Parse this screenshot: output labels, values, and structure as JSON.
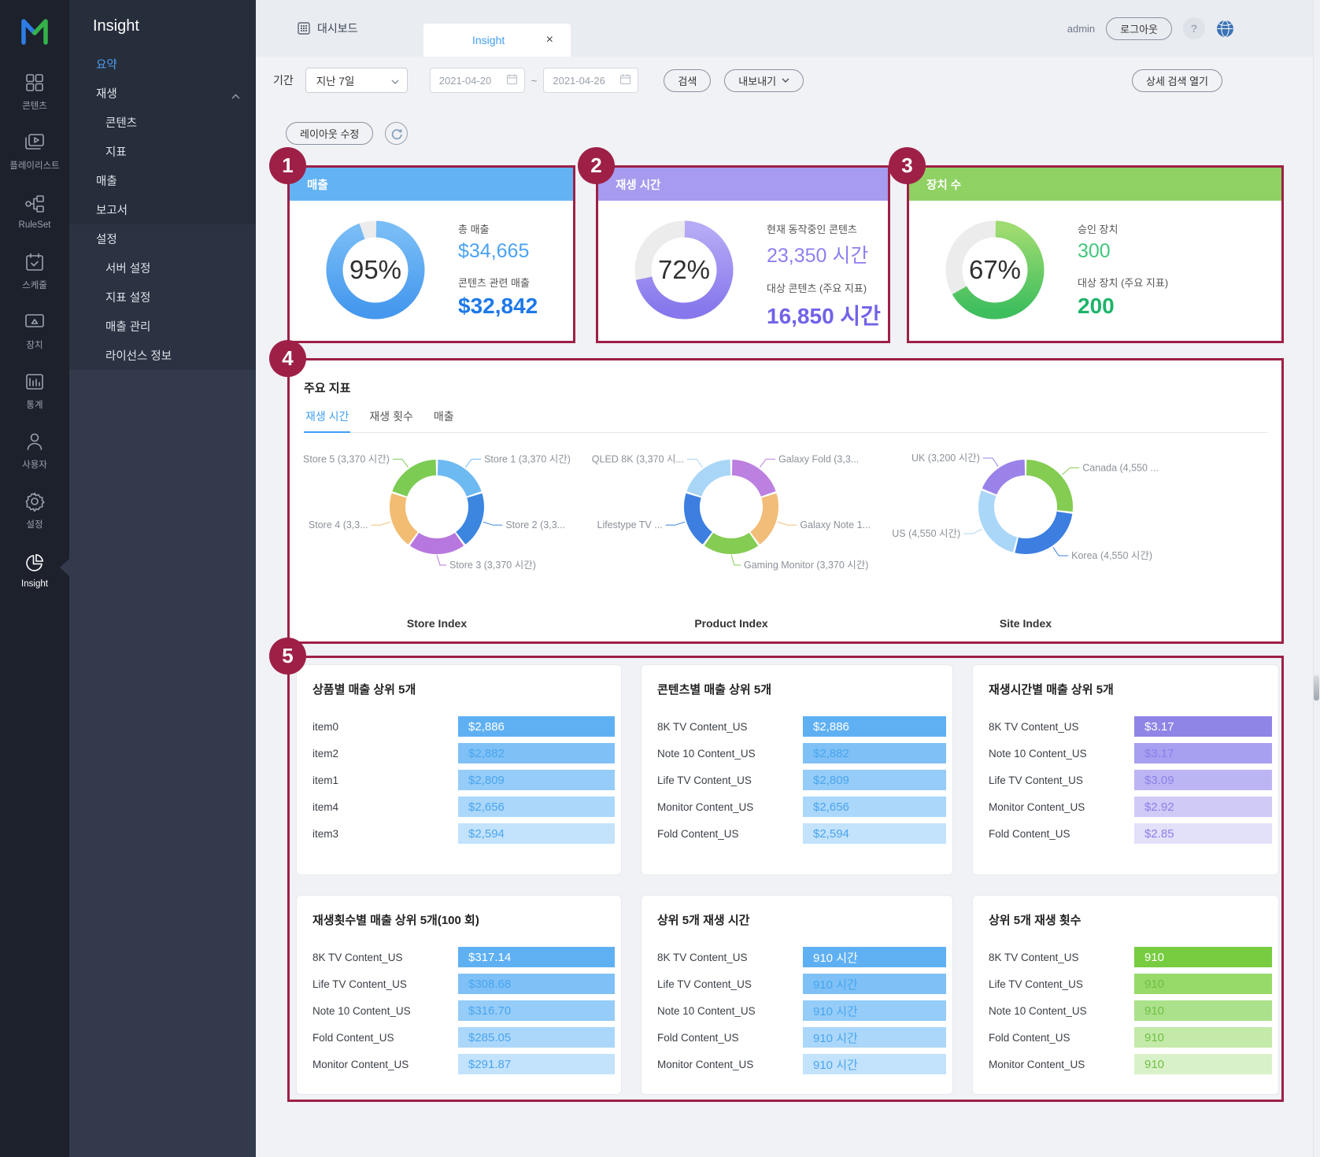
{
  "rail": {
    "items": [
      {
        "id": "contents",
        "label": "콘텐츠",
        "icon": "grid-icon",
        "active": false
      },
      {
        "id": "playlist",
        "label": "플레이리스트",
        "icon": "playlist-icon",
        "active": false
      },
      {
        "id": "ruleset",
        "label": "RuleSet",
        "icon": "ruleset-icon",
        "active": false
      },
      {
        "id": "schedule",
        "label": "스케줄",
        "icon": "calendar-icon",
        "active": false
      },
      {
        "id": "device",
        "label": "장치",
        "icon": "display-icon",
        "active": false
      },
      {
        "id": "stats",
        "label": "통계",
        "icon": "barchart-icon",
        "active": false
      },
      {
        "id": "users",
        "label": "사용자",
        "icon": "user-icon",
        "active": false
      },
      {
        "id": "settings",
        "label": "설정",
        "icon": "gear-icon",
        "active": false
      },
      {
        "id": "insight",
        "label": "Insight",
        "icon": "pie-icon",
        "active": true
      }
    ]
  },
  "side_menu": {
    "title": "Insight",
    "items": [
      {
        "label": "요약",
        "indent": 0,
        "active": true,
        "group": 1
      },
      {
        "label": "재생",
        "indent": 0,
        "active": false,
        "group": 1,
        "expandable": true
      },
      {
        "label": "콘텐츠",
        "indent": 1,
        "active": false,
        "group": 1
      },
      {
        "label": "지표",
        "indent": 1,
        "active": false,
        "group": 1
      },
      {
        "label": "매출",
        "indent": 0,
        "active": false,
        "group": 1
      },
      {
        "label": "보고서",
        "indent": 0,
        "active": false,
        "group": 1
      },
      {
        "label": "설정",
        "indent": 0,
        "active": false,
        "group": 2
      },
      {
        "label": "서버 설정",
        "indent": 1,
        "active": false,
        "group": 2
      },
      {
        "label": "지표 설정",
        "indent": 1,
        "active": false,
        "group": 2
      },
      {
        "label": "매출 관리",
        "indent": 1,
        "active": false,
        "group": 2
      },
      {
        "label": "라이선스 정보",
        "indent": 1,
        "active": false,
        "group": 2
      }
    ]
  },
  "topbar": {
    "dashboard_tab": "대시보드",
    "insight_tab": "Insight",
    "close": "×",
    "username": "admin",
    "logout": "로그아웃",
    "help": "?"
  },
  "filters": {
    "period_label": "기간",
    "period_value": "지난 7일",
    "date_from": "2021-04-20",
    "date_separator": "~",
    "date_to": "2021-04-26",
    "search": "검색",
    "export": "내보내기",
    "advanced_search": "상세 검색 열기"
  },
  "toolbar": {
    "edit_layout": "레이아웃 수정"
  },
  "kpi_cards": [
    {
      "number": "1",
      "title": "매출",
      "header_color": "#63b3f4",
      "gauge_from": "#79bdf6",
      "gauge_to": "#4598ee",
      "percent": 95,
      "percent_label": "95%",
      "stats": [
        {
          "label": "총 매출",
          "value": "$34,665",
          "color": "#4ba2f2",
          "bold": false
        },
        {
          "label": "콘텐츠 관련 매출",
          "value": "$32,842",
          "color": "#1d78e8",
          "bold": true
        }
      ]
    },
    {
      "number": "2",
      "title": "재생 시간",
      "header_color": "#a69bee",
      "gauge_from": "#b5aaf5",
      "gauge_to": "#8677ec",
      "percent": 72,
      "percent_label": "72%",
      "stats": [
        {
          "label": "현재 동작중인 콘텐츠",
          "value": "23,350 시간",
          "color": "#8d80f0",
          "bold": false
        },
        {
          "label": "대상 콘텐츠 (주요 지표)",
          "value": "16,850 시간",
          "color": "#7163e8",
          "bold": true
        }
      ]
    },
    {
      "number": "3",
      "title": "장치 수",
      "header_color": "#8fd163",
      "gauge_from": "#9edb70",
      "gauge_to": "#3fbe5e",
      "percent": 67,
      "percent_label": "67%",
      "stats": [
        {
          "label": "승인 장치",
          "value": "300",
          "color": "#41c67c",
          "bold": false
        },
        {
          "label": "대상 장치 (주요 지표)",
          "value": "200",
          "color": "#1eb46a",
          "bold": true
        }
      ]
    }
  ],
  "key_metrics": {
    "number": "4",
    "title": "주요 지표",
    "tabs": [
      {
        "label": "재생 시간",
        "active": true
      },
      {
        "label": "재생 횟수",
        "active": false
      },
      {
        "label": "매출",
        "active": false
      }
    ],
    "charts": [
      {
        "footer": "Store Index",
        "type": "donut",
        "slices": [
          {
            "label": "Store 1 (3,370 시간)",
            "value": 3370,
            "color": "#6db9f2"
          },
          {
            "label": "Store 2 (3,3...",
            "value": 3370,
            "color": "#3d86e0"
          },
          {
            "label": "Store 3 (3,370 시간)",
            "value": 3370,
            "color": "#b678de"
          },
          {
            "label": "Store 4 (3,3...",
            "value": 3370,
            "color": "#f2bd72"
          },
          {
            "label": "Store 5 (3,370 시간)",
            "value": 3370,
            "color": "#7ccb53"
          }
        ]
      },
      {
        "footer": "Product Index",
        "type": "donut",
        "slices": [
          {
            "label": "Galaxy Fold (3,3...",
            "value": 3370,
            "color": "#bb80e0"
          },
          {
            "label": "Galaxy Note 1...",
            "value": 3370,
            "color": "#f2bd78"
          },
          {
            "label": "Gaming Monitor (3,370 시간)",
            "value": 3370,
            "color": "#84cc52"
          },
          {
            "label": "Lifestype TV ...",
            "value": 3370,
            "color": "#3d7fe0"
          },
          {
            "label": "QLED 8K (3,370 시...",
            "value": 3370,
            "color": "#a9d6f7"
          }
        ]
      },
      {
        "footer": "Site Index",
        "type": "donut",
        "slices": [
          {
            "label": "Canada (4,550 ...",
            "value": 4550,
            "color": "#84cc52"
          },
          {
            "label": "Korea (4,550 시간)",
            "value": 4550,
            "color": "#3d7fe0"
          },
          {
            "label": "US (4,550 시간)",
            "value": 4550,
            "color": "#aad7f7"
          },
          {
            "label": "UK (3,200 시간)",
            "value": 3200,
            "color": "#9b82e8"
          }
        ]
      }
    ]
  },
  "top5": {
    "number": "5",
    "panels": [
      {
        "title": "상품별 매출 상위 5개",
        "palette": "blue",
        "rows": [
          {
            "label": "item0",
            "value": "$2,886"
          },
          {
            "label": "item2",
            "value": "$2,882"
          },
          {
            "label": "item1",
            "value": "$2,809"
          },
          {
            "label": "item4",
            "value": "$2,656"
          },
          {
            "label": "item3",
            "value": "$2,594"
          }
        ]
      },
      {
        "title": "콘텐츠별 매출 상위 5개",
        "palette": "blue",
        "rows": [
          {
            "label": "8K TV Content_US",
            "value": "$2,886"
          },
          {
            "label": "Note 10 Content_US",
            "value": "$2,882"
          },
          {
            "label": "Life TV Content_US",
            "value": "$2,809"
          },
          {
            "label": "Monitor Content_US",
            "value": "$2,656"
          },
          {
            "label": "Fold Content_US",
            "value": "$2,594"
          }
        ]
      },
      {
        "title": "재생시간별 매출 상위 5개",
        "palette": "purple",
        "rows": [
          {
            "label": "8K TV Content_US",
            "value": "$3.17"
          },
          {
            "label": "Note 10 Content_US",
            "value": "$3.17"
          },
          {
            "label": "Life TV Content_US",
            "value": "$3.09"
          },
          {
            "label": "Monitor Content_US",
            "value": "$2.92"
          },
          {
            "label": "Fold Content_US",
            "value": "$2.85"
          }
        ]
      },
      {
        "title": "재생횟수별 매출 상위 5개(100 회)",
        "palette": "blue",
        "rows": [
          {
            "label": "8K TV Content_US",
            "value": "$317.14"
          },
          {
            "label": "Life TV Content_US",
            "value": "$308.68"
          },
          {
            "label": "Note 10 Content_US",
            "value": "$316.70"
          },
          {
            "label": "Fold Content_US",
            "value": "$285.05"
          },
          {
            "label": "Monitor Content_US",
            "value": "$291.87"
          }
        ]
      },
      {
        "title": "상위 5개 재생 시간",
        "palette": "blue",
        "rows": [
          {
            "label": "8K TV Content_US",
            "value": "910 시간"
          },
          {
            "label": "Life TV Content_US",
            "value": "910 시간"
          },
          {
            "label": "Note 10 Content_US",
            "value": "910 시간"
          },
          {
            "label": "Fold Content_US",
            "value": "910 시간"
          },
          {
            "label": "Monitor Content_US",
            "value": "910 시간"
          }
        ]
      },
      {
        "title": "상위 5개 재생 횟수",
        "palette": "green",
        "rows": [
          {
            "label": "8K TV Content_US",
            "value": "910"
          },
          {
            "label": "Life TV Content_US",
            "value": "910"
          },
          {
            "label": "Note 10 Content_US",
            "value": "910"
          },
          {
            "label": "Fold Content_US",
            "value": "910"
          },
          {
            "label": "Monitor Content_US",
            "value": "910"
          }
        ]
      }
    ]
  },
  "palettes": {
    "blue": {
      "bars": [
        "#5fb0f3",
        "#7fc1f6",
        "#95ccf8",
        "#abd7fa",
        "#c3e2fb"
      ],
      "text": [
        "#ffffff",
        "#4aa5ef",
        "#4aa5ef",
        "#4aa5ef",
        "#4aa5ef"
      ]
    },
    "purple": {
      "bars": [
        "#8f85e6",
        "#a79ff0",
        "#bcb5f3",
        "#cfcaf6",
        "#e3e0fa"
      ],
      "text": [
        "#ffffff",
        "#8b80ea",
        "#8b80ea",
        "#8b80ea",
        "#8b80ea"
      ]
    },
    "green": {
      "bars": [
        "#77cc40",
        "#97da69",
        "#ace18b",
        "#c4eaa9",
        "#d9f1c9"
      ],
      "text": [
        "#ffffff",
        "#6fc046",
        "#6fc046",
        "#6fc046",
        "#6fc046"
      ]
    }
  },
  "colors": {
    "accent_maroon": "#9e2046",
    "tab_active": "#3f9ef2"
  }
}
